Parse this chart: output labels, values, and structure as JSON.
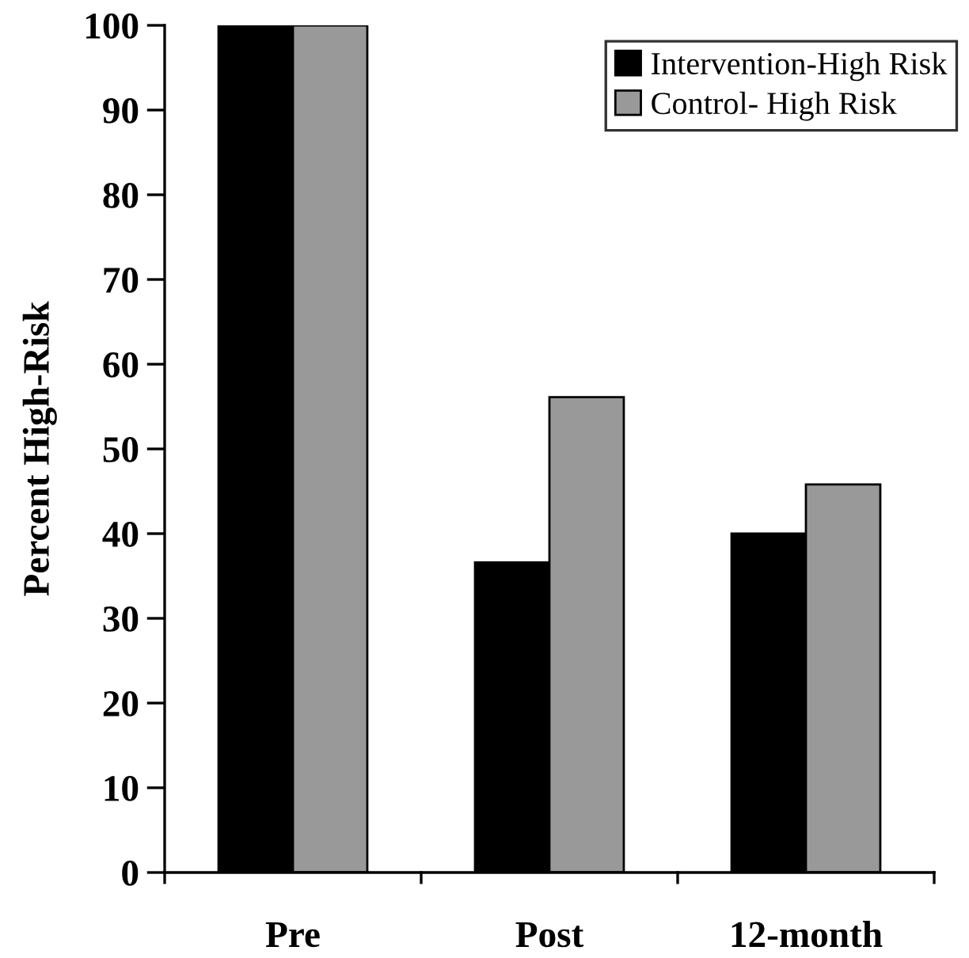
{
  "chart_data": {
    "type": "bar",
    "ylabel": "Percent High-Risk",
    "categories": [
      "Pre",
      "Post",
      "12-month"
    ],
    "series": [
      {
        "name": "Intervention-High Risk",
        "color": "#000000",
        "values": [
          100,
          36.6,
          40.0
        ]
      },
      {
        "name": "Control- High Risk",
        "color": "#999999",
        "values": [
          100,
          56.1,
          45.8
        ]
      }
    ],
    "ylim": [
      0,
      100
    ],
    "yticks": [
      0,
      10,
      20,
      30,
      40,
      50,
      60,
      70,
      80,
      90,
      100
    ],
    "grid": false,
    "legend": "top right"
  }
}
